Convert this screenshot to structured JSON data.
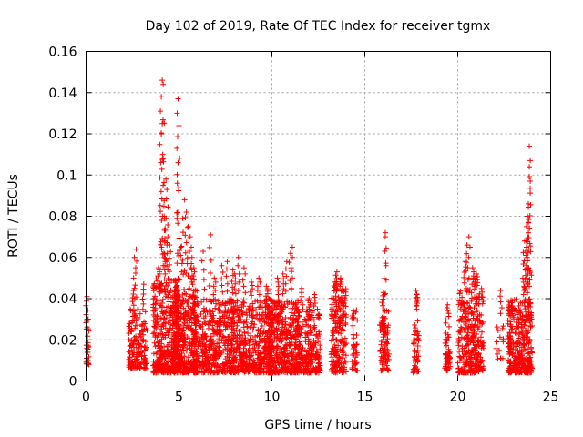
{
  "chart_data": {
    "type": "scatter",
    "title": "Day 102 of 2019, Rate Of TEC Index for receiver tgmx",
    "xlabel": "GPS time / hours",
    "ylabel": "ROTI / TECUs",
    "xlim": [
      0,
      25
    ],
    "ylim": [
      0,
      0.16
    ],
    "xticks": [
      "0",
      "5",
      "10",
      "15",
      "20",
      "25"
    ],
    "yticks": [
      "0",
      "0.02",
      "0.04",
      "0.06",
      "0.08",
      "0.1",
      "0.12",
      "0.14",
      "0.16"
    ],
    "grid": true,
    "marker": "plus",
    "color": "#ff0000",
    "series": [
      {
        "clusters": [
          {
            "x": [
              0.0,
              0.15
            ],
            "y": [
              0.008,
              0.03
            ],
            "n": 30,
            "peaks": [
              [
                0.05,
                0.041
              ],
              [
                0.1,
                0.03
              ]
            ]
          },
          {
            "x": [
              2.3,
              3.3
            ],
            "y": [
              0.006,
              0.035
            ],
            "n": 160,
            "peaks": [
              [
                2.6,
                0.06
              ],
              [
                2.7,
                0.064
              ],
              [
                3.1,
                0.047
              ],
              [
                2.55,
                0.044
              ]
            ]
          },
          {
            "x": [
              3.6,
              5.0
            ],
            "y": [
              0.004,
              0.05
            ],
            "n": 420,
            "peaks": [
              [
                4.1,
                0.146
              ],
              [
                4.15,
                0.144
              ],
              [
                4.05,
                0.138
              ],
              [
                4.0,
                0.131
              ],
              [
                4.1,
                0.125
              ],
              [
                4.05,
                0.12
              ],
              [
                4.15,
                0.108
              ],
              [
                4.3,
                0.098
              ],
              [
                4.35,
                0.093
              ],
              [
                4.2,
                0.08
              ],
              [
                4.3,
                0.079
              ],
              [
                4.4,
                0.07
              ],
              [
                4.5,
                0.066
              ],
              [
                3.9,
                0.055
              ],
              [
                4.2,
                0.06
              ]
            ]
          },
          {
            "x": [
              4.7,
              6.0
            ],
            "y": [
              0.004,
              0.045
            ],
            "n": 360,
            "peaks": [
              [
                4.95,
                0.137
              ],
              [
                4.9,
                0.13
              ],
              [
                5.0,
                0.124
              ],
              [
                4.95,
                0.106
              ],
              [
                5.3,
                0.088
              ],
              [
                5.4,
                0.082
              ],
              [
                5.2,
                0.079
              ],
              [
                5.5,
                0.075
              ],
              [
                5.6,
                0.07
              ],
              [
                5.1,
                0.065
              ],
              [
                5.7,
                0.06
              ],
              [
                5.8,
                0.055
              ]
            ]
          },
          {
            "x": [
              5.8,
              8.0
            ],
            "y": [
              0.004,
              0.04
            ],
            "n": 420,
            "peaks": [
              [
                6.3,
                0.063
              ],
              [
                6.7,
                0.071
              ],
              [
                7.3,
                0.056
              ],
              [
                7.6,
                0.058
              ],
              [
                6.9,
                0.05
              ],
              [
                7.9,
                0.054
              ]
            ]
          },
          {
            "x": [
              7.8,
              10.0
            ],
            "y": [
              0.004,
              0.04
            ],
            "n": 480,
            "peaks": [
              [
                8.2,
                0.06
              ],
              [
                8.5,
                0.055
              ],
              [
                8.9,
                0.048
              ],
              [
                9.3,
                0.05
              ],
              [
                9.7,
                0.046
              ],
              [
                8.0,
                0.052
              ]
            ]
          },
          {
            "x": [
              9.8,
              11.5
            ],
            "y": [
              0.004,
              0.04
            ],
            "n": 420,
            "peaks": [
              [
                10.3,
                0.05
              ],
              [
                10.8,
                0.058
              ],
              [
                11.0,
                0.062
              ],
              [
                11.1,
                0.065
              ],
              [
                10.6,
                0.052
              ]
            ]
          },
          {
            "x": [
              11.3,
              12.6
            ],
            "y": [
              0.004,
              0.035
            ],
            "n": 250,
            "peaks": [
              [
                11.6,
                0.045
              ],
              [
                12.0,
                0.04
              ],
              [
                12.3,
                0.042
              ]
            ]
          },
          {
            "x": [
              13.2,
              14.0
            ],
            "y": [
              0.004,
              0.045
            ],
            "n": 200,
            "peaks": [
              [
                13.5,
                0.053
              ],
              [
                13.7,
                0.05
              ],
              [
                13.4,
                0.048
              ]
            ]
          },
          {
            "x": [
              14.3,
              14.6
            ],
            "y": [
              0.005,
              0.035
            ],
            "n": 40,
            "peaks": []
          },
          {
            "x": [
              15.8,
              16.3
            ],
            "y": [
              0.005,
              0.035
            ],
            "n": 90,
            "peaks": [
              [
                16.1,
                0.072
              ],
              [
                16.1,
                0.07
              ],
              [
                16.0,
                0.043
              ]
            ]
          },
          {
            "x": [
              17.6,
              17.9
            ],
            "y": [
              0.004,
              0.035
            ],
            "n": 50,
            "peaks": [
              [
                17.75,
                0.044
              ],
              [
                17.8,
                0.042
              ]
            ]
          },
          {
            "x": [
              19.3,
              19.6
            ],
            "y": [
              0.005,
              0.03
            ],
            "n": 50,
            "peaks": [
              [
                19.45,
                0.037
              ]
            ]
          },
          {
            "x": [
              20.0,
              21.4
            ],
            "y": [
              0.004,
              0.045
            ],
            "n": 320,
            "peaks": [
              [
                20.6,
                0.07
              ],
              [
                20.5,
                0.066
              ],
              [
                20.4,
                0.058
              ],
              [
                20.8,
                0.055
              ],
              [
                21.0,
                0.052
              ],
              [
                20.9,
                0.05
              ]
            ]
          },
          {
            "x": [
              22.0,
              22.5
            ],
            "y": [
              0.01,
              0.03
            ],
            "n": 15,
            "peaks": [
              [
                22.3,
                0.044
              ]
            ]
          },
          {
            "x": [
              22.7,
              24.0
            ],
            "y": [
              0.004,
              0.04
            ],
            "n": 380,
            "peaks": [
              [
                23.85,
                0.114
              ],
              [
                23.9,
                0.107
              ],
              [
                23.85,
                0.104
              ],
              [
                23.9,
                0.097
              ],
              [
                23.8,
                0.086
              ],
              [
                23.75,
                0.08
              ],
              [
                23.8,
                0.077
              ],
              [
                23.7,
                0.075
              ],
              [
                23.6,
                0.068
              ],
              [
                23.7,
                0.065
              ],
              [
                23.65,
                0.063
              ],
              [
                23.5,
                0.05
              ],
              [
                23.8,
                0.055
              ]
            ]
          }
        ]
      }
    ]
  }
}
